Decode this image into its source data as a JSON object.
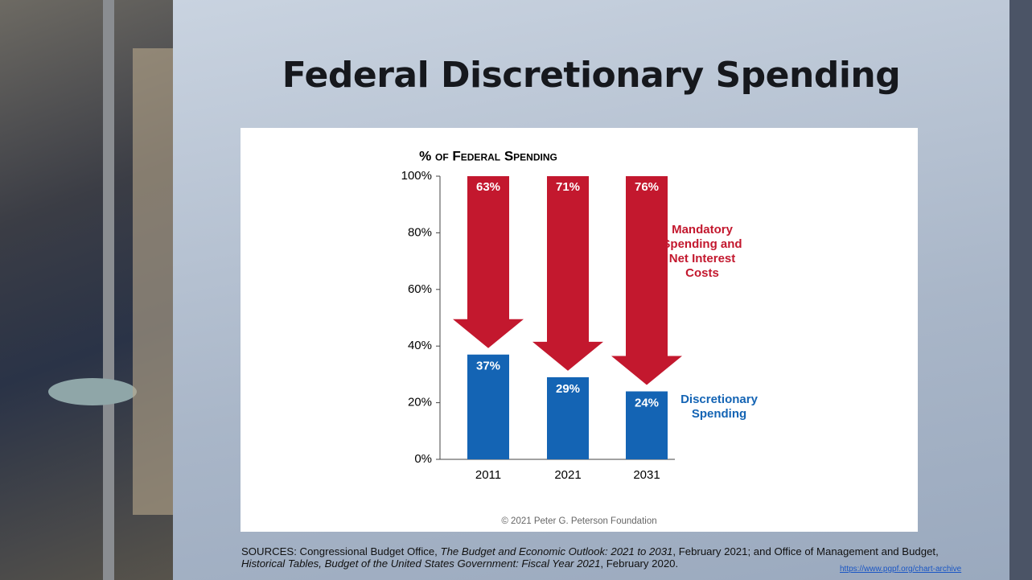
{
  "slide": {
    "title": "Federal Discretionary Spending",
    "sources": [
      "SOURCES: Congressional Budget Office, ",
      "The Budget and Economic Outlook: 2021 to 2031",
      ", February 2021; and Office of Management and Budget, ",
      "Historical Tables, Budget of the United States Government: Fiscal Year 2021",
      ", February 2020."
    ],
    "link": "https://www.pgpf.org/chart-archive"
  },
  "chart_data": {
    "type": "stacked-arrow-bar",
    "title": "% of Federal Spending",
    "credit": "© 2021 Peter G. Peterson Foundation",
    "categories": [
      "2011",
      "2021",
      "2031"
    ],
    "series": [
      {
        "name": "Discretionary Spending",
        "color": "#1464b4",
        "values": [
          37,
          29,
          24
        ],
        "value_labels": [
          "37%",
          "29%",
          "24%"
        ]
      },
      {
        "name": "Mandatory Spending and Net Interest Costs",
        "color": "#c3182e",
        "values": [
          63,
          71,
          76
        ],
        "value_labels": [
          "63%",
          "71%",
          "76%"
        ]
      }
    ],
    "ylim": [
      0,
      100
    ],
    "yticks": [
      {
        "value": 0,
        "label": "0%"
      },
      {
        "value": 20,
        "label": "20%"
      },
      {
        "value": 40,
        "label": "40%"
      },
      {
        "value": 60,
        "label": "60%"
      },
      {
        "value": 80,
        "label": "80%"
      },
      {
        "value": 100,
        "label": "100%"
      }
    ]
  }
}
